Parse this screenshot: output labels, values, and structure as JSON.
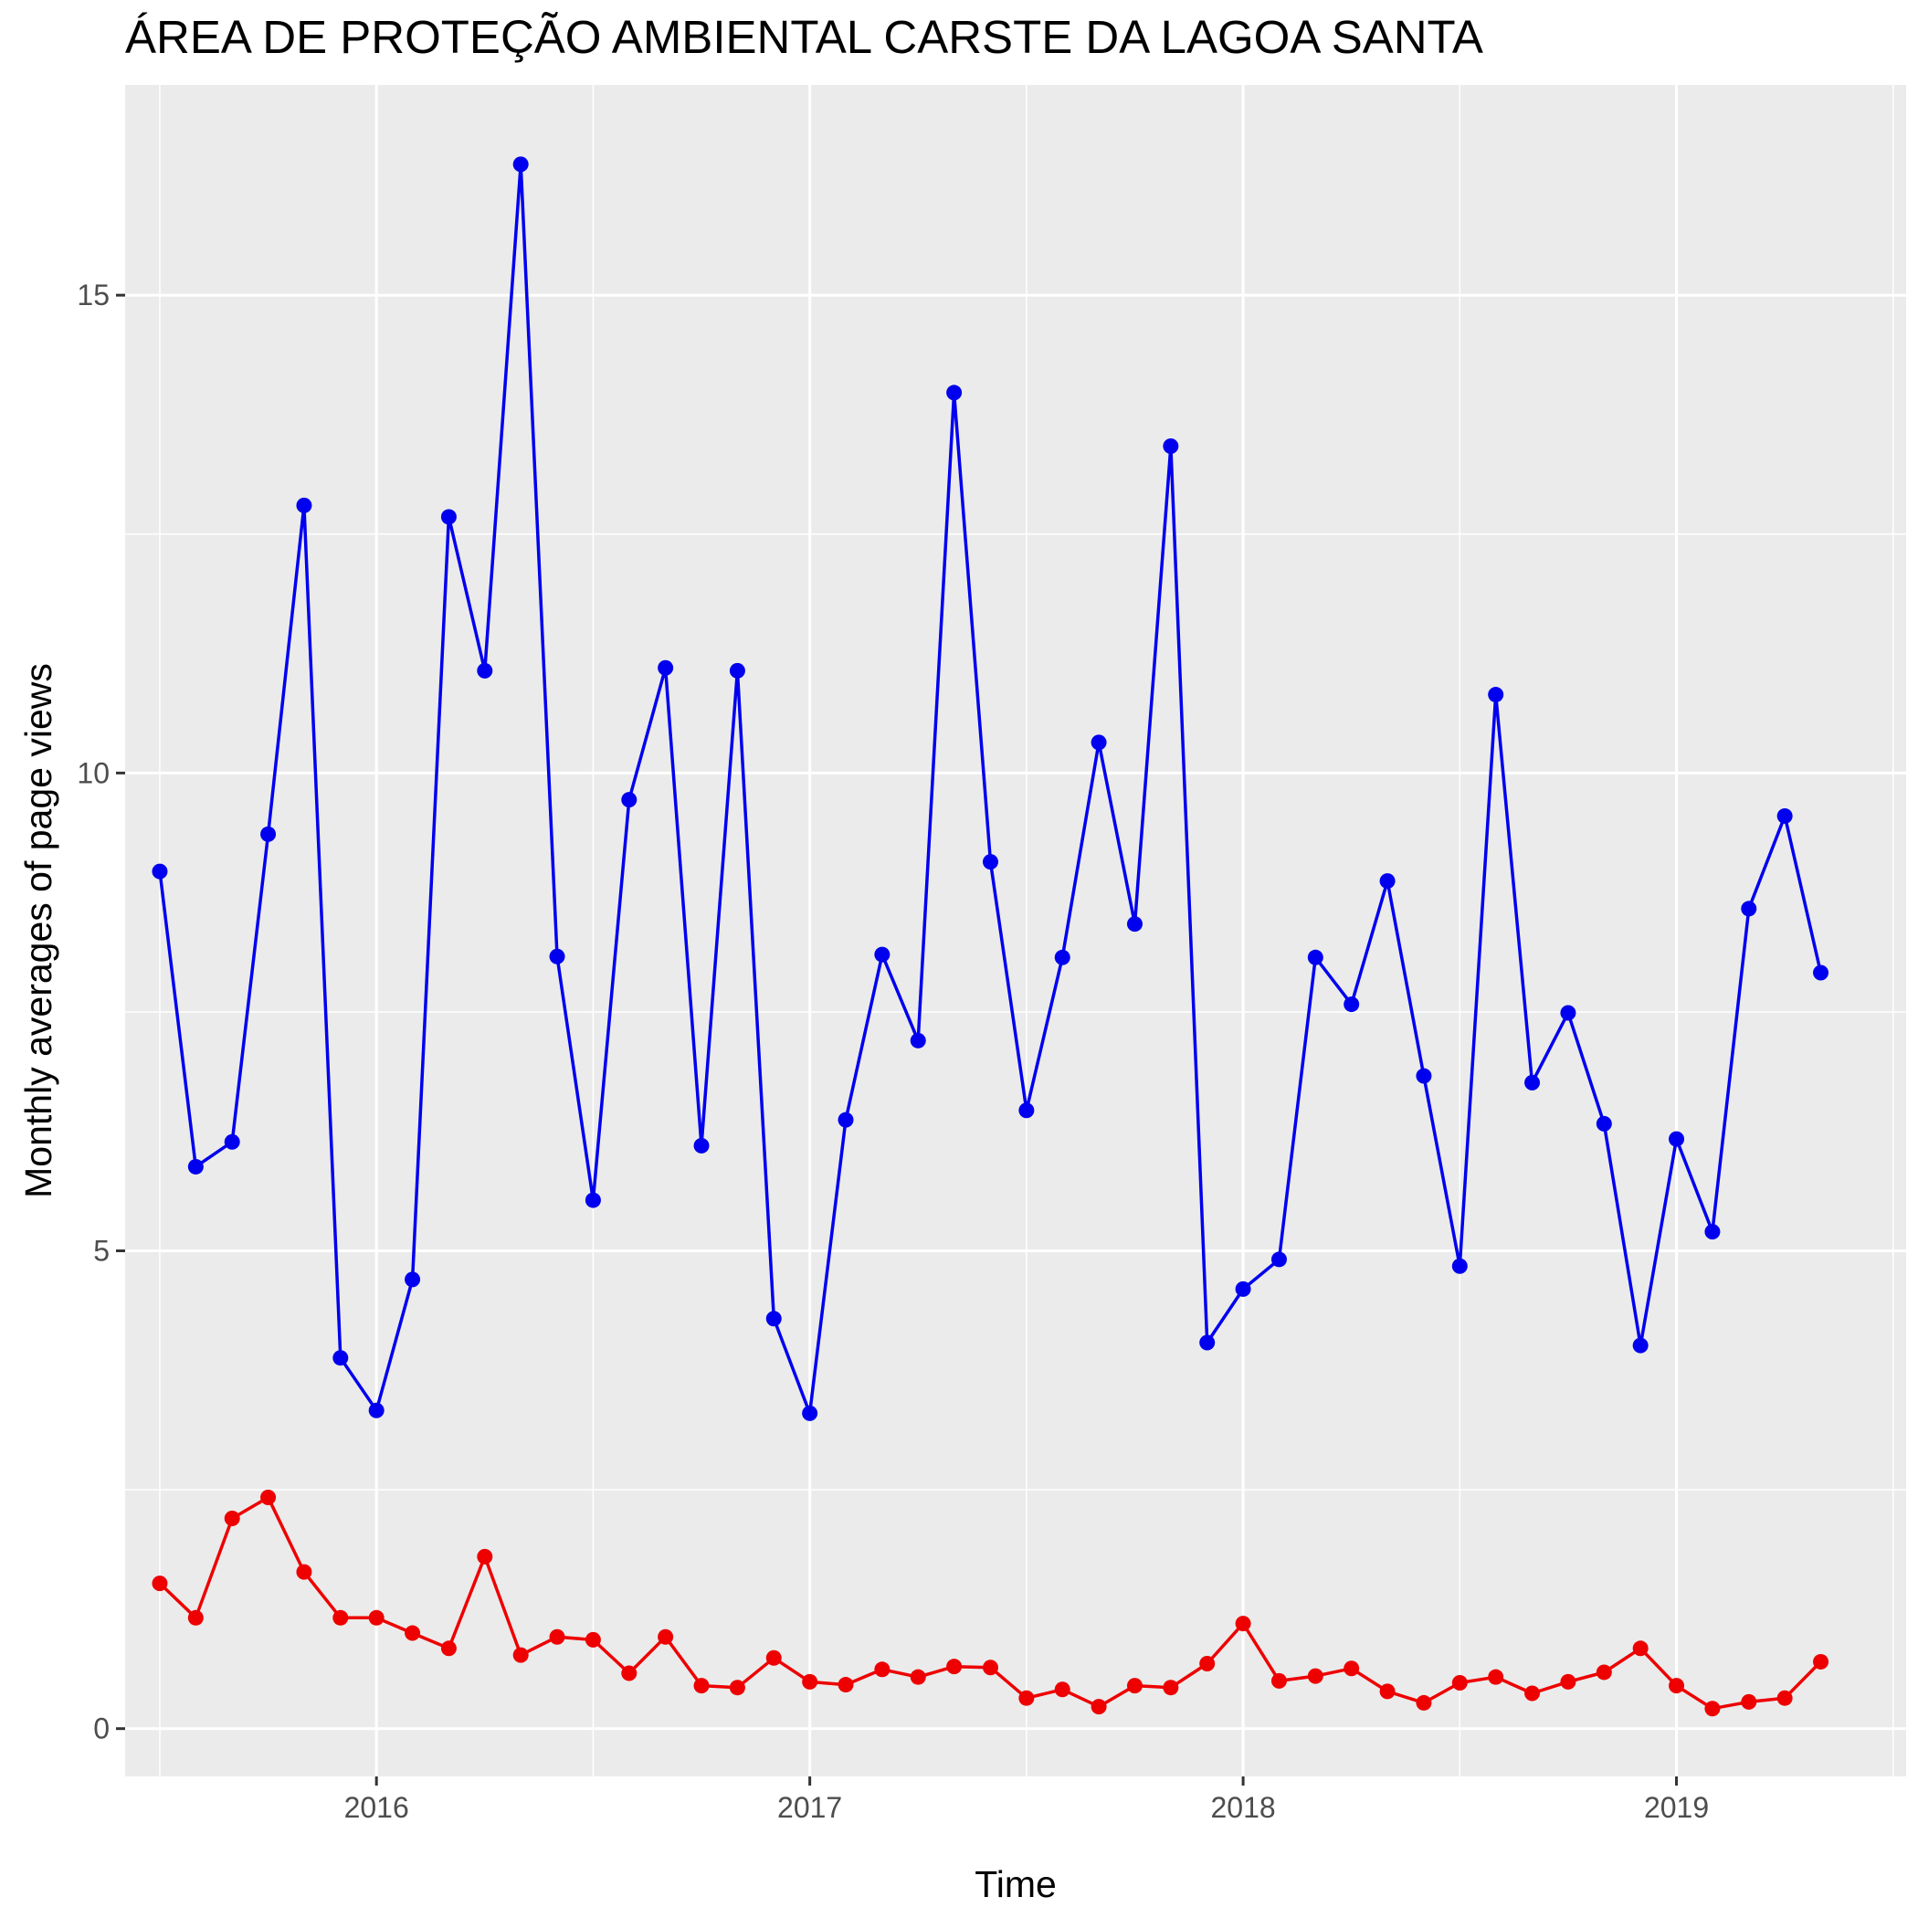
{
  "chart_data": {
    "type": "line",
    "title": "ÁREA DE PROTEÇÃO AMBIENTAL CARSTE DA LAGOA SANTA",
    "xlabel": "Time",
    "ylabel": "Monthly averages of page views",
    "xlim": [
      2015.42,
      2019.53
    ],
    "ylim": [
      -0.5,
      17.2
    ],
    "x_ticks": [
      2016,
      2017,
      2018,
      2019
    ],
    "x_tick_labels": [
      "2016",
      "2017",
      "2018",
      "2019"
    ],
    "y_ticks": [
      0,
      5,
      10,
      15
    ],
    "y_tick_labels": [
      "0",
      "5",
      "10",
      "15"
    ],
    "grid": true,
    "legend": "none",
    "x": [
      2015.5,
      2015.583,
      2015.667,
      2015.75,
      2015.833,
      2015.917,
      2016.0,
      2016.083,
      2016.167,
      2016.25,
      2016.333,
      2016.417,
      2016.5,
      2016.583,
      2016.667,
      2016.75,
      2016.833,
      2016.917,
      2017.0,
      2017.083,
      2017.167,
      2017.25,
      2017.333,
      2017.417,
      2017.5,
      2017.583,
      2017.667,
      2017.75,
      2017.833,
      2017.917,
      2018.0,
      2018.083,
      2018.167,
      2018.25,
      2018.333,
      2018.417,
      2018.5,
      2018.583,
      2018.667,
      2018.75,
      2018.833,
      2018.917,
      2019.0,
      2019.083,
      2019.167,
      2019.25,
      2019.333
    ],
    "series": [
      {
        "color": "#0000ee",
        "values": [
          8.97,
          5.88,
          6.14,
          9.36,
          12.8,
          3.88,
          3.33,
          4.7,
          12.68,
          11.07,
          16.37,
          8.08,
          5.53,
          9.72,
          11.1,
          6.1,
          11.07,
          4.29,
          3.3,
          6.37,
          8.1,
          7.2,
          13.98,
          9.07,
          6.47,
          8.07,
          10.32,
          8.42,
          13.42,
          4.04,
          4.6,
          4.91,
          8.07,
          7.58,
          8.87,
          6.83,
          4.84,
          10.82,
          6.76,
          7.49,
          6.33,
          4.01,
          6.17,
          5.2,
          8.58,
          9.55,
          7.91
        ]
      },
      {
        "color": "#ee0000",
        "values": [
          1.52,
          1.16,
          2.2,
          2.42,
          1.64,
          1.16,
          1.16,
          1.0,
          0.84,
          1.8,
          0.77,
          0.96,
          0.93,
          0.58,
          0.96,
          0.45,
          0.43,
          0.74,
          0.49,
          0.46,
          0.62,
          0.54,
          0.65,
          0.64,
          0.32,
          0.41,
          0.23,
          0.45,
          0.43,
          0.68,
          1.1,
          0.5,
          0.55,
          0.63,
          0.39,
          0.27,
          0.48,
          0.54,
          0.37,
          0.49,
          0.59,
          0.84,
          0.45,
          0.21,
          0.28,
          0.32,
          0.7
        ]
      }
    ]
  }
}
